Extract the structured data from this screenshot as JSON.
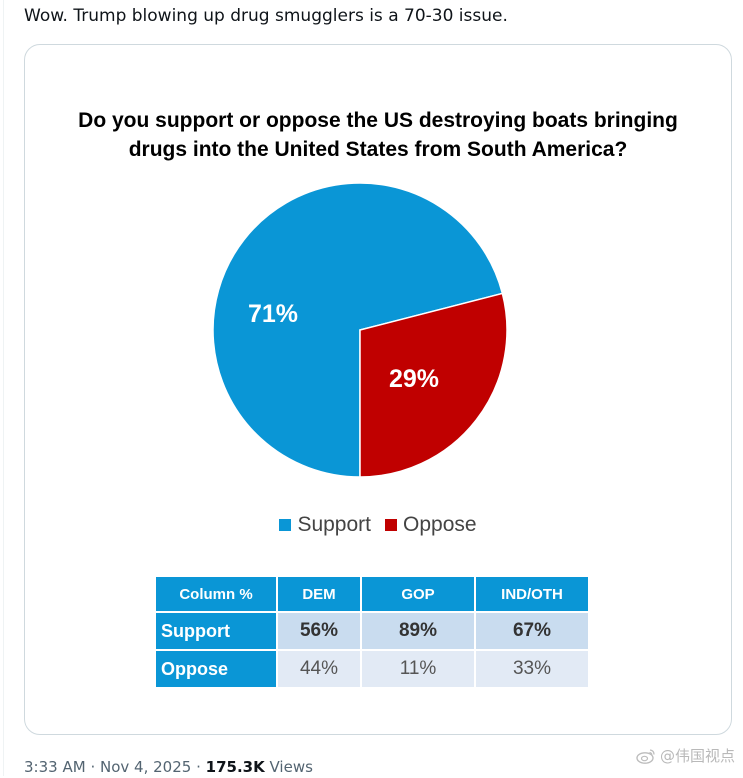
{
  "tweet": {
    "text": "Wow. Trump blowing up drug smugglers is a 70-30 issue.",
    "time": "3:33 AM",
    "separator": "·",
    "date": "Nov 4, 2025",
    "views_count": "175.3K",
    "views_label": "Views"
  },
  "watermark": {
    "text": "@伟国视点",
    "icon": "weibo-icon"
  },
  "colors": {
    "support": "#0a96d6",
    "oppose": "#c00000",
    "header": "#0a96d6"
  },
  "chart_data": {
    "type": "pie",
    "title_lines": [
      "Do you support or oppose the US destroying boats bringing",
      "drugs into the United States from South America?"
    ],
    "slices": [
      {
        "label": "Support",
        "value": 71,
        "display": "71%"
      },
      {
        "label": "Oppose",
        "value": 29,
        "display": "29%"
      }
    ],
    "legend": [
      "Support",
      "Oppose"
    ],
    "legend_position": "bottom"
  },
  "crosstab": {
    "corner": "Column %",
    "columns": [
      "DEM",
      "GOP",
      "IND/OTH"
    ],
    "rows": [
      {
        "label": "Support",
        "values": [
          "56%",
          "89%",
          "67%"
        ]
      },
      {
        "label": "Oppose",
        "values": [
          "44%",
          "11%",
          "33%"
        ]
      }
    ]
  }
}
